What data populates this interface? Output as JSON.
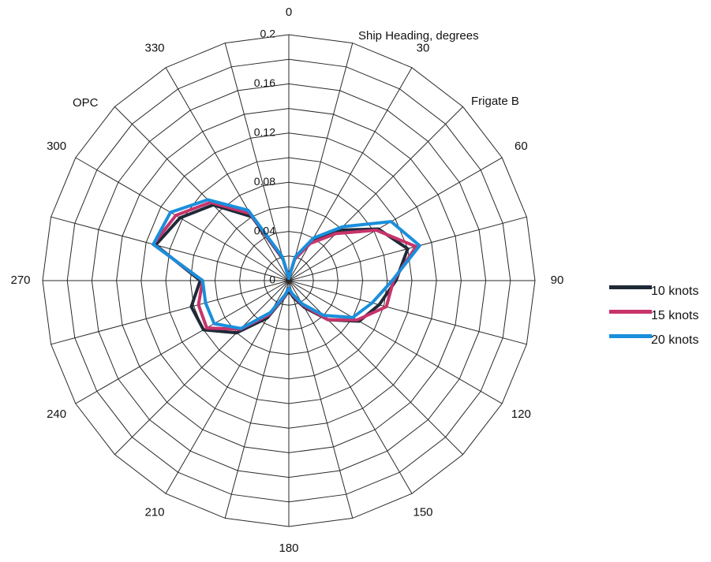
{
  "chart_data": {
    "type": "polar",
    "annotations": {
      "heading": "Ship Heading, degrees",
      "left_ship": "OPC",
      "right_ship": "Frigate B"
    },
    "angle_ticks": [
      0,
      30,
      60,
      90,
      120,
      150,
      180,
      210,
      240,
      270,
      300,
      330
    ],
    "angle_labels": [
      "0",
      "30",
      "60",
      "90",
      "120",
      "150",
      "180",
      "210",
      "240",
      "270",
      "300",
      "330"
    ],
    "radial_ticks": [
      0,
      0.04,
      0.08,
      0.12,
      0.16,
      0.2
    ],
    "radial_labels": [
      "0",
      "0.04",
      "0.08",
      "0.12",
      "0.16",
      "0.2"
    ],
    "rlim": [
      0,
      0.2
    ],
    "angular_grid_step": 15,
    "radial_grid_step": 0.02,
    "angles": [
      0,
      15,
      30,
      45,
      60,
      75,
      90,
      105,
      120,
      135,
      150,
      165,
      180,
      195,
      210,
      225,
      240,
      255,
      270,
      285,
      300,
      315,
      330,
      345
    ],
    "series": [
      {
        "name": "10 knots",
        "color": "#1f2a38",
        "values": [
          0.002,
          0.018,
          0.036,
          0.058,
          0.084,
          0.1,
          0.087,
          0.076,
          0.066,
          0.045,
          0.025,
          0.014,
          0.008,
          0.014,
          0.035,
          0.06,
          0.08,
          0.082,
          0.072,
          0.112,
          0.102,
          0.087,
          0.06,
          0.018
        ]
      },
      {
        "name": "15 knots",
        "color": "#c8336b",
        "values": [
          0.002,
          0.018,
          0.035,
          0.054,
          0.082,
          0.107,
          0.085,
          0.082,
          0.064,
          0.045,
          0.023,
          0.012,
          0.006,
          0.013,
          0.032,
          0.056,
          0.077,
          0.076,
          0.07,
          0.114,
          0.106,
          0.09,
          0.063,
          0.019
        ]
      },
      {
        "name": "20 knots",
        "color": "#1a8fdc",
        "values": [
          0.002,
          0.02,
          0.04,
          0.062,
          0.096,
          0.11,
          0.084,
          0.07,
          0.06,
          0.04,
          0.022,
          0.011,
          0.006,
          0.012,
          0.03,
          0.055,
          0.07,
          0.07,
          0.07,
          0.114,
          0.111,
          0.093,
          0.066,
          0.02
        ]
      }
    ],
    "legend": "right"
  }
}
